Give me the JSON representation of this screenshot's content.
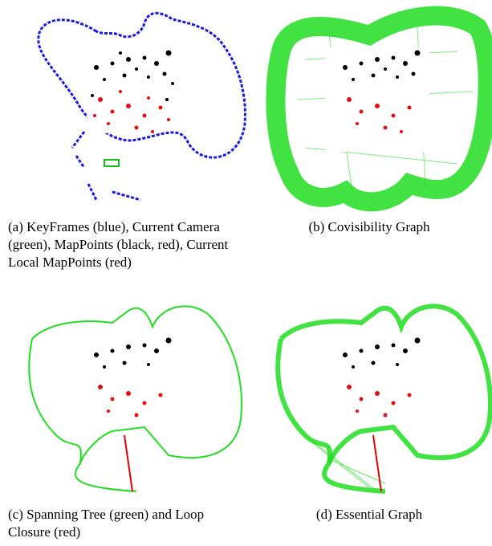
{
  "figure": {
    "panels": [
      {
        "id": "a",
        "caption": "(a) KeyFrames (blue), Current Camera (green), MapPoints (black, red), Current Local MapPoints (red)"
      },
      {
        "id": "b",
        "caption": "(b) Covisibility Graph"
      },
      {
        "id": "c",
        "caption": "(c) Spanning Tree (green) and Loop Closure (red)"
      },
      {
        "id": "d",
        "caption": "(d) Essential Graph"
      }
    ],
    "colors": {
      "keyframes": "#1a1adf",
      "current_camera": "#18c018",
      "mappoints": "#000000",
      "local_mappoints": "#e01010",
      "graph_edges": "#22dd22",
      "loop_closure": "#e00000"
    }
  }
}
